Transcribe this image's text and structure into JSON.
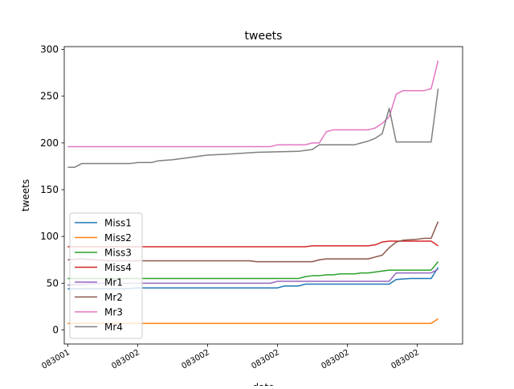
{
  "chart_data": {
    "type": "line",
    "title": "tweets",
    "xlabel": "date",
    "ylabel": "tweets",
    "ylim": [
      -15,
      303
    ],
    "xlim": [
      -0.5,
      56.5
    ],
    "y_ticks": [
      0,
      50,
      100,
      150,
      200,
      250,
      300
    ],
    "x_ticks": [
      {
        "x": 0,
        "label": "083001"
      },
      {
        "x": 10,
        "label": "083002"
      },
      {
        "x": 20,
        "label": "083002"
      },
      {
        "x": 30,
        "label": "083002"
      },
      {
        "x": 40,
        "label": "083002"
      },
      {
        "x": 50,
        "label": "083002"
      }
    ],
    "grid": false,
    "legend_position": "lower-left",
    "series": [
      {
        "name": "Miss1",
        "color": "#1f77b4",
        "points": [
          [
            0,
            44
          ],
          [
            8,
            44
          ],
          [
            10,
            45
          ],
          [
            30,
            45
          ],
          [
            31,
            47
          ],
          [
            33,
            47
          ],
          [
            34,
            49
          ],
          [
            46,
            49
          ],
          [
            47,
            54
          ],
          [
            49,
            55
          ],
          [
            52,
            55
          ],
          [
            53,
            67
          ]
        ]
      },
      {
        "name": "Miss2",
        "color": "#ff7f0e",
        "points": [
          [
            0,
            7
          ],
          [
            52,
            7
          ],
          [
            53,
            12
          ]
        ]
      },
      {
        "name": "Miss3",
        "color": "#2ca02c",
        "points": [
          [
            0,
            55
          ],
          [
            33,
            55
          ],
          [
            34,
            57
          ],
          [
            35,
            58
          ],
          [
            36,
            58
          ],
          [
            37,
            59
          ],
          [
            38,
            59
          ],
          [
            39,
            60
          ],
          [
            41,
            60
          ],
          [
            42,
            61
          ],
          [
            43,
            61
          ],
          [
            45,
            63
          ],
          [
            46,
            64
          ],
          [
            52,
            64
          ],
          [
            53,
            73
          ]
        ]
      },
      {
        "name": "Miss4",
        "color": "#d62728",
        "points": [
          [
            0,
            89
          ],
          [
            34,
            89
          ],
          [
            35,
            90
          ],
          [
            43,
            90
          ],
          [
            44,
            91
          ],
          [
            45,
            94
          ],
          [
            46,
            95
          ],
          [
            48,
            95
          ],
          [
            49,
            95
          ],
          [
            52,
            95
          ],
          [
            53,
            90
          ]
        ]
      },
      {
        "name": "Mr1",
        "color": "#9467bd",
        "points": [
          [
            0,
            48
          ],
          [
            5,
            50
          ],
          [
            29,
            50
          ],
          [
            30,
            52
          ],
          [
            46,
            52
          ],
          [
            47,
            61
          ],
          [
            52,
            61
          ],
          [
            53,
            65
          ]
        ]
      },
      {
        "name": "Mr2",
        "color": "#8c564b",
        "points": [
          [
            0,
            75
          ],
          [
            2,
            76
          ],
          [
            4,
            75
          ],
          [
            6,
            74
          ],
          [
            26,
            74
          ],
          [
            27,
            73
          ],
          [
            35,
            73
          ],
          [
            36,
            75
          ],
          [
            37,
            76
          ],
          [
            43,
            76
          ],
          [
            44,
            78
          ],
          [
            45,
            80
          ],
          [
            46,
            88
          ],
          [
            47,
            94
          ],
          [
            48,
            96
          ],
          [
            50,
            97
          ],
          [
            51,
            98
          ],
          [
            52,
            98
          ],
          [
            53,
            116
          ]
        ]
      },
      {
        "name": "Mr3",
        "color": "#e377c2",
        "points": [
          [
            0,
            196
          ],
          [
            29,
            196
          ],
          [
            30,
            198
          ],
          [
            34,
            198
          ],
          [
            35,
            200
          ],
          [
            36,
            200
          ],
          [
            37,
            212
          ],
          [
            38,
            214
          ],
          [
            43,
            214
          ],
          [
            44,
            216
          ],
          [
            45,
            221
          ],
          [
            46,
            228
          ],
          [
            47,
            252
          ],
          [
            48,
            256
          ],
          [
            51,
            256
          ],
          [
            52,
            258
          ],
          [
            53,
            288
          ]
        ]
      },
      {
        "name": "Mr4",
        "color": "#7f7f7f",
        "points": [
          [
            0,
            174
          ],
          [
            1,
            174
          ],
          [
            2,
            178
          ],
          [
            9,
            178
          ],
          [
            10,
            179
          ],
          [
            12,
            179
          ],
          [
            13,
            181
          ],
          [
            15,
            182
          ],
          [
            17,
            184
          ],
          [
            18,
            185
          ],
          [
            19,
            186
          ],
          [
            20,
            187
          ],
          [
            23,
            188
          ],
          [
            25,
            189
          ],
          [
            27,
            190
          ],
          [
            33,
            191
          ],
          [
            34,
            192
          ],
          [
            35,
            193
          ],
          [
            36,
            198
          ],
          [
            41,
            198
          ],
          [
            42,
            200
          ],
          [
            43,
            202
          ],
          [
            44,
            205
          ],
          [
            45,
            210
          ],
          [
            46,
            237
          ],
          [
            47,
            201
          ],
          [
            52,
            201
          ],
          [
            53,
            258
          ]
        ]
      }
    ]
  }
}
